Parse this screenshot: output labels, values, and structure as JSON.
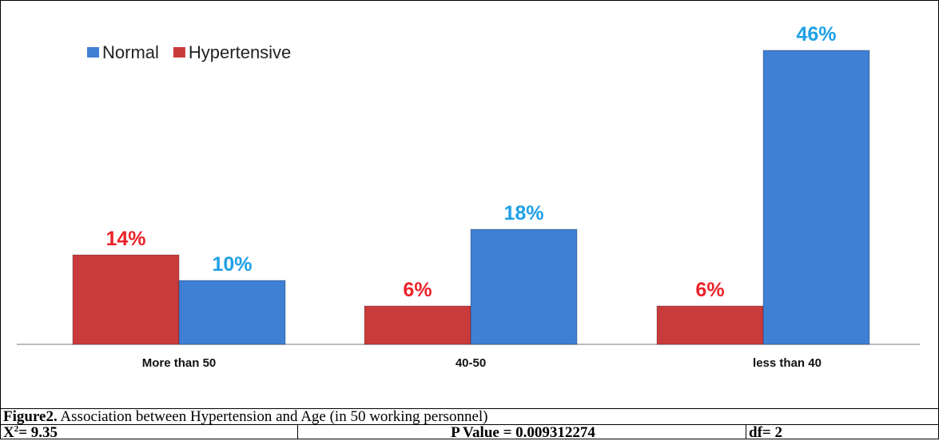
{
  "chart_data": {
    "type": "bar",
    "categories": [
      "More than 50",
      "40-50",
      "less than 40"
    ],
    "series": [
      {
        "name": "Normal",
        "color": "#3f7fd4",
        "label_color": "#1ea0e6",
        "values": [
          10,
          18,
          46
        ],
        "value_labels": [
          "10%",
          "18%",
          "46%"
        ]
      },
      {
        "name": "Hypertensive",
        "color": "#c93b3b",
        "label_color": "#ec2229",
        "values": [
          14,
          6,
          6
        ],
        "value_labels": [
          "14%",
          "6%",
          "6%"
        ]
      }
    ],
    "ylim": [
      0,
      50
    ]
  },
  "caption": {
    "label": "Figure2.",
    "text": " Association between Hypertension and Age (in 50 working personnel)"
  },
  "footer": {
    "chi_square": {
      "symbol": "X",
      "superscript": "2",
      "text": "= 9.35"
    },
    "p_value": "P Value = 0.009312274",
    "df": "df= 2"
  }
}
